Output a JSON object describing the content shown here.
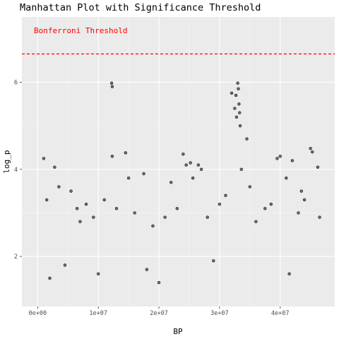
{
  "chart_data": {
    "type": "scatter",
    "title": "Manhattan Plot with Significance Threshold",
    "xlabel": "BP",
    "ylabel": "log_p",
    "xlim": [
      -2600000,
      49000000
    ],
    "ylim": [
      0.85,
      7.5
    ],
    "x_ticks": [
      {
        "value": 0,
        "label": "0e+00"
      },
      {
        "value": 10000000,
        "label": "1e+07"
      },
      {
        "value": 20000000,
        "label": "2e+07"
      },
      {
        "value": 30000000,
        "label": "3e+07"
      },
      {
        "value": 40000000,
        "label": "4e+07"
      }
    ],
    "y_ticks": [
      {
        "value": 2,
        "label": "2"
      },
      {
        "value": 4,
        "label": "4"
      },
      {
        "value": 6,
        "label": "6"
      }
    ],
    "threshold": {
      "value": 6.65,
      "label": "Bonferroni Threshold",
      "color": "#ff0000",
      "style": "dashed"
    },
    "grid": true,
    "background": "#ebebeb",
    "point_color": "#000000",
    "point_opacity": 0.55,
    "series": [
      {
        "x": [
          1000000,
          2800000,
          5500000,
          6500000,
          7000000,
          12200000,
          12300000,
          12300000,
          14500000,
          15000000,
          17500000,
          22000000,
          24000000,
          24500000,
          25200000,
          25600000,
          26500000,
          27000000,
          32000000,
          32500000,
          32700000,
          32800000,
          33000000,
          33100000,
          33200000,
          33300000,
          33400000,
          33600000,
          34500000,
          35000000,
          39500000,
          40000000,
          41000000,
          42000000,
          43500000,
          45000000,
          45300000,
          46200000,
          1500000,
          3500000,
          8000000,
          9200000,
          11000000,
          13000000,
          16000000,
          19000000,
          21000000,
          23000000,
          28000000,
          30000000,
          31000000,
          36000000,
          37500000,
          38500000,
          43000000,
          44000000,
          46500000,
          2000000,
          4500000,
          10000000,
          18000000,
          20000000,
          29000000,
          41500000
        ],
        "y": [
          4.25,
          4.05,
          3.5,
          3.1,
          2.8,
          5.98,
          5.9,
          4.3,
          4.38,
          3.8,
          3.9,
          3.7,
          4.35,
          4.1,
          4.15,
          3.8,
          4.1,
          4.0,
          5.75,
          5.4,
          5.7,
          5.2,
          5.98,
          5.85,
          5.5,
          5.3,
          5.0,
          4.0,
          4.7,
          3.6,
          4.25,
          4.3,
          3.8,
          4.2,
          3.5,
          4.48,
          4.4,
          4.05,
          3.3,
          3.6,
          3.2,
          2.9,
          3.3,
          3.1,
          3.0,
          2.7,
          2.9,
          3.1,
          2.9,
          3.2,
          3.4,
          2.8,
          3.1,
          3.2,
          3.0,
          3.3,
          2.9,
          1.5,
          1.8,
          1.6,
          1.7,
          1.4,
          1.9,
          1.6
        ]
      }
    ]
  }
}
